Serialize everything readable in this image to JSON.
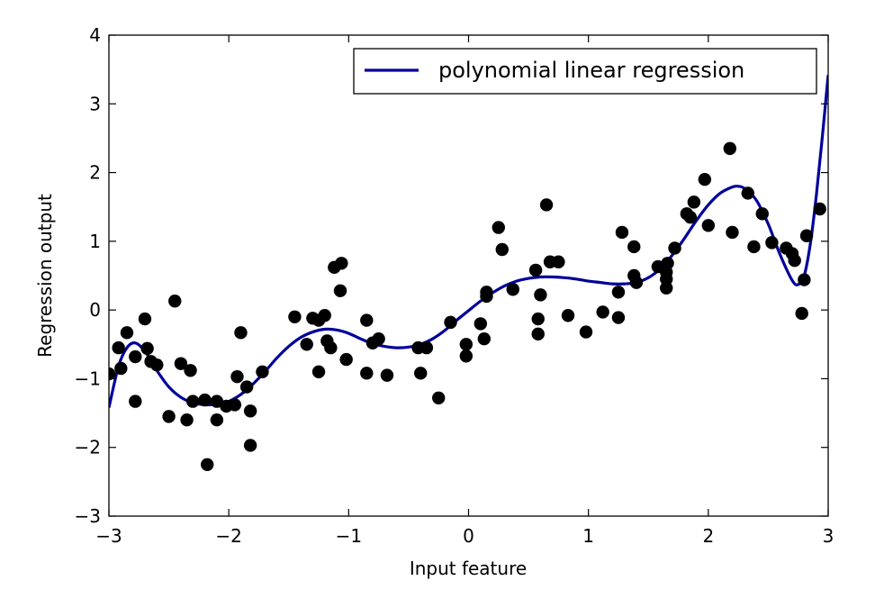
{
  "chart_data": {
    "type": "scatter",
    "xlabel": "Input feature",
    "ylabel": "Regression output",
    "xlim": [
      -3,
      3
    ],
    "ylim": [
      -3,
      4
    ],
    "xticks": [
      -3,
      -2,
      -1,
      0,
      1,
      2,
      3
    ],
    "yticks": [
      -3,
      -2,
      -1,
      0,
      1,
      2,
      3,
      4
    ],
    "xtick_labels": [
      "−3",
      "−2",
      "−1",
      "0",
      "1",
      "2",
      "3"
    ],
    "ytick_labels": [
      "−3",
      "−2",
      "−1",
      "0",
      "1",
      "2",
      "3",
      "4"
    ],
    "grid": false,
    "legend_position": "top-right",
    "series": [
      {
        "name": "polynomial linear regression",
        "type": "line",
        "color": "#00009b",
        "x": [
          -3.0,
          -2.92,
          -2.85,
          -2.78,
          -2.7,
          -2.6,
          -2.5,
          -2.4,
          -2.3,
          -2.2,
          -2.1,
          -2.0,
          -1.9,
          -1.8,
          -1.7,
          -1.6,
          -1.5,
          -1.4,
          -1.3,
          -1.2,
          -1.1,
          -1.0,
          -0.9,
          -0.8,
          -0.7,
          -0.6,
          -0.5,
          -0.4,
          -0.3,
          -0.2,
          -0.1,
          0.0,
          0.1,
          0.2,
          0.3,
          0.4,
          0.5,
          0.6,
          0.7,
          0.8,
          0.9,
          1.0,
          1.1,
          1.2,
          1.3,
          1.4,
          1.5,
          1.6,
          1.7,
          1.8,
          1.9,
          2.0,
          2.1,
          2.2,
          2.25,
          2.3,
          2.4,
          2.5,
          2.6,
          2.7,
          2.75,
          2.8,
          2.85,
          2.9,
          2.95,
          3.0
        ],
        "y": [
          -1.42,
          -0.82,
          -0.55,
          -0.48,
          -0.6,
          -0.88,
          -1.12,
          -1.27,
          -1.35,
          -1.38,
          -1.37,
          -1.33,
          -1.23,
          -1.08,
          -0.9,
          -0.7,
          -0.53,
          -0.4,
          -0.32,
          -0.28,
          -0.29,
          -0.34,
          -0.42,
          -0.49,
          -0.53,
          -0.55,
          -0.54,
          -0.5,
          -0.42,
          -0.3,
          -0.15,
          -0.01,
          0.13,
          0.25,
          0.35,
          0.42,
          0.46,
          0.48,
          0.48,
          0.47,
          0.45,
          0.42,
          0.4,
          0.38,
          0.38,
          0.4,
          0.47,
          0.6,
          0.8,
          1.04,
          1.3,
          1.53,
          1.7,
          1.79,
          1.8,
          1.77,
          1.6,
          1.25,
          0.8,
          0.43,
          0.37,
          0.5,
          0.95,
          1.65,
          2.5,
          3.42
        ]
      },
      {
        "name": "",
        "type": "scatter",
        "color": "#000000",
        "points": [
          [
            -3.0,
            -0.93
          ],
          [
            -2.92,
            -0.55
          ],
          [
            -2.9,
            -0.85
          ],
          [
            -2.85,
            -0.33
          ],
          [
            -2.78,
            -1.33
          ],
          [
            -2.78,
            -0.68
          ],
          [
            -2.7,
            -0.13
          ],
          [
            -2.68,
            -0.56
          ],
          [
            -2.65,
            -0.75
          ],
          [
            -2.6,
            -0.8
          ],
          [
            -2.5,
            -1.55
          ],
          [
            -2.45,
            0.13
          ],
          [
            -2.4,
            -0.78
          ],
          [
            -2.35,
            -1.6
          ],
          [
            -2.32,
            -0.88
          ],
          [
            -2.3,
            -1.33
          ],
          [
            -2.2,
            -1.31
          ],
          [
            -2.18,
            -2.25
          ],
          [
            -2.1,
            -1.6
          ],
          [
            -2.1,
            -1.33
          ],
          [
            -2.02,
            -1.4
          ],
          [
            -1.95,
            -1.38
          ],
          [
            -1.93,
            -0.97
          ],
          [
            -1.9,
            -0.33
          ],
          [
            -1.85,
            -1.12
          ],
          [
            -1.82,
            -1.47
          ],
          [
            -1.82,
            -1.97
          ],
          [
            -1.72,
            -0.9
          ],
          [
            -1.45,
            -0.1
          ],
          [
            -1.35,
            -0.5
          ],
          [
            -1.3,
            -0.12
          ],
          [
            -1.25,
            -0.15
          ],
          [
            -1.25,
            -0.9
          ],
          [
            -1.2,
            -0.08
          ],
          [
            -1.18,
            -0.45
          ],
          [
            -1.15,
            -0.55
          ],
          [
            -1.12,
            0.62
          ],
          [
            -1.07,
            0.28
          ],
          [
            -1.06,
            0.68
          ],
          [
            -1.02,
            -0.72
          ],
          [
            -0.85,
            -0.92
          ],
          [
            -0.85,
            -0.15
          ],
          [
            -0.8,
            -0.48
          ],
          [
            -0.75,
            -0.42
          ],
          [
            -0.68,
            -0.95
          ],
          [
            -0.42,
            -0.55
          ],
          [
            -0.4,
            -0.92
          ],
          [
            -0.35,
            -0.55
          ],
          [
            -0.25,
            -1.28
          ],
          [
            -0.15,
            -0.18
          ],
          [
            -0.02,
            -0.5
          ],
          [
            -0.02,
            -0.67
          ],
          [
            0.1,
            -0.2
          ],
          [
            0.13,
            -0.42
          ],
          [
            0.15,
            0.26
          ],
          [
            0.15,
            0.2
          ],
          [
            0.25,
            1.2
          ],
          [
            0.28,
            0.88
          ],
          [
            0.37,
            0.3
          ],
          [
            0.56,
            0.58
          ],
          [
            0.58,
            -0.13
          ],
          [
            0.58,
            -0.35
          ],
          [
            0.6,
            0.22
          ],
          [
            0.65,
            1.53
          ],
          [
            0.68,
            0.7
          ],
          [
            0.75,
            0.7
          ],
          [
            0.83,
            -0.08
          ],
          [
            0.98,
            -0.32
          ],
          [
            1.12,
            -0.03
          ],
          [
            1.25,
            0.26
          ],
          [
            1.25,
            -0.11
          ],
          [
            1.28,
            1.13
          ],
          [
            1.38,
            0.92
          ],
          [
            1.38,
            0.5
          ],
          [
            1.4,
            0.4
          ],
          [
            1.58,
            0.63
          ],
          [
            1.65,
            0.55
          ],
          [
            1.65,
            0.45
          ],
          [
            1.65,
            0.32
          ],
          [
            1.66,
            0.68
          ],
          [
            1.72,
            0.9
          ],
          [
            1.82,
            1.4
          ],
          [
            1.85,
            1.35
          ],
          [
            1.88,
            1.57
          ],
          [
            1.97,
            1.9
          ],
          [
            2.0,
            1.23
          ],
          [
            2.18,
            2.35
          ],
          [
            2.2,
            1.13
          ],
          [
            2.33,
            1.7
          ],
          [
            2.38,
            0.92
          ],
          [
            2.45,
            1.4
          ],
          [
            2.53,
            0.98
          ],
          [
            2.65,
            0.9
          ],
          [
            2.7,
            0.82
          ],
          [
            2.72,
            0.72
          ],
          [
            2.78,
            -0.05
          ],
          [
            2.8,
            0.44
          ],
          [
            2.82,
            1.08
          ],
          [
            2.93,
            1.47
          ]
        ]
      }
    ]
  }
}
